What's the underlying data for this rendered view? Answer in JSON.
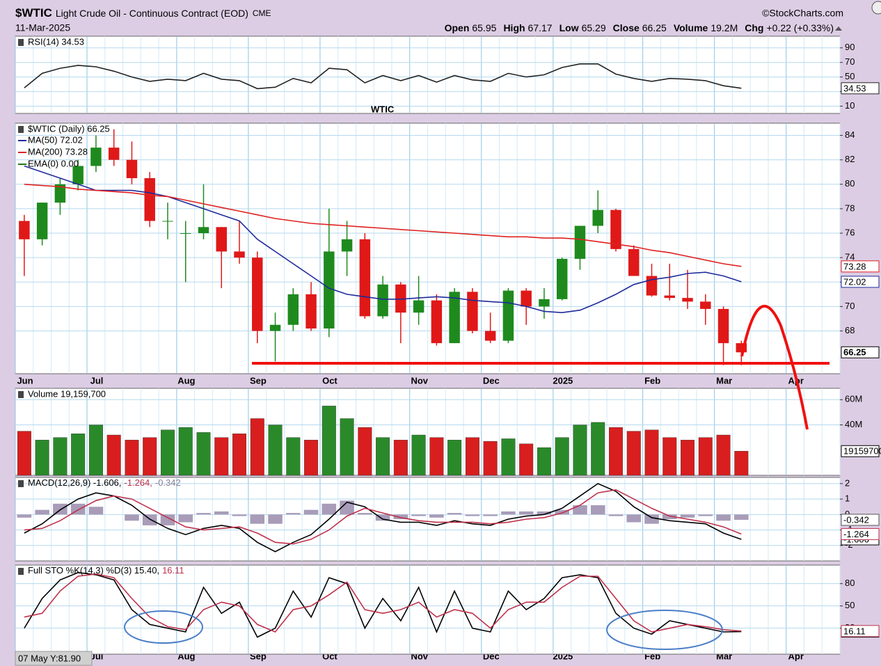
{
  "header": {
    "symbol": "$WTIC",
    "name": "Light Crude Oil - Continuous Contract (EOD)",
    "exchange": "CME",
    "date": "11-Mar-2025",
    "brand": "©StockCharts.com",
    "quote": [
      [
        "Open",
        "65.95"
      ],
      [
        "High",
        "67.17"
      ],
      [
        "Low",
        "65.29"
      ],
      [
        "Close",
        "66.25"
      ],
      [
        "Volume",
        "19.2M"
      ],
      [
        "Chg",
        "+0.22 (+0.33%)"
      ]
    ]
  },
  "cursor_readout": "07 May Y:81.90",
  "chart_data": [
    {
      "type": "line",
      "title": "RSI(14) 34.53",
      "ylim": [
        0,
        106
      ],
      "yticks": [
        90,
        70,
        50,
        30,
        10
      ],
      "series": [
        {
          "color": "#222222",
          "values": [
            35,
            55,
            62,
            66,
            64,
            58,
            50,
            44,
            47,
            45,
            55,
            47,
            45,
            34,
            36,
            48,
            42,
            62,
            60,
            42,
            52,
            45,
            52,
            43,
            52,
            46,
            44,
            55,
            50,
            53,
            63,
            68,
            68,
            54,
            48,
            44,
            48,
            47,
            45,
            38,
            34.53,
            null,
            null,
            null,
            null,
            null
          ]
        }
      ]
    },
    {
      "type": "candlestick",
      "title": "$WTIC (Daily) 66.25",
      "annotation": "WTIC",
      "annotation_color": "#a030f0",
      "up_color": "#1e8a1e",
      "down_color": "#e01818",
      "categories": [
        "Jun",
        null,
        null,
        null,
        "Jul",
        null,
        null,
        null,
        null,
        "Aug",
        null,
        null,
        null,
        "Sep",
        null,
        null,
        null,
        "Oct",
        null,
        null,
        null,
        null,
        "Nov",
        null,
        null,
        null,
        "Dec",
        null,
        null,
        null,
        "2025",
        null,
        null,
        null,
        null,
        "Feb",
        null,
        null,
        null,
        "Mar",
        null,
        null,
        null,
        "Apr",
        null,
        null
      ],
      "open": [
        77,
        75.5,
        78.5,
        80,
        81.5,
        83,
        82,
        80.5,
        77,
        76,
        76,
        76.5,
        74.5,
        74,
        68,
        68.5,
        71,
        68.2,
        74.5,
        75.5,
        69.2,
        71.8,
        69.5,
        70.5,
        67,
        71.2,
        68,
        67.2,
        71.3,
        70,
        70.6,
        73.9,
        76.6,
        77.9,
        74.7,
        72.5,
        70.9,
        70.7,
        70.4,
        69.8,
        67,
        null,
        null,
        null,
        null,
        null
      ],
      "high": [
        77.5,
        78.5,
        80.5,
        82,
        84,
        84.5,
        83.5,
        81,
        78.5,
        77,
        80,
        76.5,
        77,
        74.5,
        69.5,
        71.5,
        72,
        78,
        77,
        76,
        72.5,
        72,
        72.5,
        71,
        71.5,
        71.5,
        69.5,
        71.5,
        71.5,
        71.5,
        74,
        76.5,
        79.5,
        78,
        75,
        73.5,
        73.5,
        73,
        71,
        70,
        67.2,
        null,
        null,
        null,
        null,
        null
      ],
      "low": [
        72.5,
        75,
        77.5,
        79.5,
        81,
        81.5,
        80,
        76.5,
        75.5,
        72,
        75.5,
        71.5,
        73.5,
        67,
        65.5,
        68,
        68,
        67.5,
        72.5,
        69,
        69,
        67,
        68.5,
        66.8,
        67,
        67.8,
        67,
        67,
        68.5,
        69,
        70.5,
        73,
        76,
        74.5,
        72.5,
        70.8,
        70.5,
        69.8,
        68.5,
        65.2,
        65.2,
        null,
        null,
        null,
        null,
        null
      ],
      "close": [
        75.5,
        78.5,
        80,
        81.5,
        83,
        82,
        80.5,
        77,
        77,
        76,
        76.5,
        74.5,
        74,
        68,
        68.5,
        71,
        68.2,
        74.5,
        75.5,
        69.2,
        71.8,
        69.5,
        70.5,
        67,
        71.2,
        68,
        67.2,
        71.3,
        70,
        70.6,
        73.9,
        76.6,
        77.9,
        74.7,
        72.5,
        70.9,
        70.7,
        70.4,
        69.8,
        67,
        66.25,
        null,
        null,
        null,
        null,
        null
      ],
      "ylim": [
        64.5,
        85
      ],
      "yticks": [
        68,
        70,
        72,
        74,
        76,
        78,
        80,
        82,
        84
      ],
      "series": [
        {
          "name": "MA(50) 72.02",
          "color": "#1f2a9a",
          "values": [
            81.5,
            81.0,
            80.5,
            80.0,
            79.5,
            79.5,
            79.5,
            79.3,
            79.0,
            78.5,
            78.0,
            77.5,
            77.0,
            75.5,
            74.5,
            73.5,
            72.5,
            71.5,
            71.0,
            70.8,
            70.6,
            70.6,
            70.7,
            70.8,
            70.7,
            70.5,
            70.4,
            70.3,
            70.0,
            69.6,
            69.5,
            69.7,
            70.3,
            71.0,
            71.8,
            72.2,
            72.4,
            72.7,
            72.8,
            72.5,
            72.02,
            null,
            null,
            null,
            null,
            null
          ]
        },
        {
          "name": "MA(200) 73.28",
          "color": "#e02020",
          "values": [
            80,
            79.9,
            79.8,
            79.6,
            79.5,
            79.4,
            79.3,
            79.1,
            79.0,
            78.7,
            78.4,
            78.1,
            77.8,
            77.5,
            77.2,
            77.0,
            76.8,
            76.7,
            76.6,
            76.5,
            76.4,
            76.3,
            76.2,
            76.1,
            76.0,
            75.9,
            75.8,
            75.7,
            75.7,
            75.6,
            75.6,
            75.5,
            75.3,
            75.1,
            74.9,
            74.6,
            74.4,
            74.1,
            73.8,
            73.5,
            73.28,
            null,
            null,
            null,
            null,
            null
          ]
        }
      ],
      "legend_extra": {
        "name": "EMA(0) 0.00",
        "color": "#1a7a1a"
      }
    },
    {
      "type": "bar",
      "title": "Volume 19,159,700",
      "up_color": "#2a8a2a",
      "down_color": "#d81e1e",
      "ylim": [
        0,
        69000000
      ],
      "yticks": [
        {
          "value": 40000000,
          "label": "40M"
        },
        {
          "value": 60000000,
          "label": "60M"
        }
      ],
      "values": [
        35000000,
        28000000,
        30000000,
        33000000,
        40000000,
        32000000,
        28000000,
        30000000,
        36000000,
        38000000,
        34000000,
        30000000,
        33000000,
        45000000,
        40000000,
        30000000,
        28000000,
        55000000,
        45000000,
        38000000,
        30000000,
        28000000,
        32000000,
        30000000,
        28000000,
        30000000,
        27000000,
        29000000,
        25000000,
        22000000,
        30000000,
        40000000,
        42000000,
        38000000,
        35000000,
        36000000,
        30000000,
        28000000,
        30000000,
        32000000,
        19159700,
        null,
        null,
        null,
        null,
        null
      ]
    },
    {
      "type": "line",
      "title": [
        "MACD(12,26,9) -1.606,",
        "-1.264,",
        "-0.342"
      ],
      "title_colors": [
        "#000000",
        "#c0304a",
        "#8a7f98"
      ],
      "ylim": [
        -3,
        2.4
      ],
      "yticks": [
        2,
        1,
        0,
        -1,
        -2
      ],
      "series": [
        {
          "color": "#000000",
          "values": [
            -1.2,
            -0.6,
            0.3,
            1.0,
            1.4,
            1.2,
            0.6,
            -0.3,
            -0.9,
            -1.3,
            -0.9,
            -0.7,
            -0.9,
            -1.8,
            -2.4,
            -1.8,
            -1.3,
            -0.3,
            0.8,
            0.5,
            -0.3,
            -0.5,
            -0.5,
            -0.7,
            -0.4,
            -0.6,
            -0.7,
            -0.3,
            -0.1,
            0.0,
            0.4,
            1.2,
            2.0,
            1.5,
            0.5,
            -0.2,
            -0.4,
            -0.5,
            -0.6,
            -1.2,
            -1.606,
            null,
            null,
            null,
            null,
            null
          ]
        },
        {
          "color": "#c0304a",
          "values": [
            -1.0,
            -0.9,
            -0.4,
            0.3,
            0.9,
            1.2,
            1.0,
            0.4,
            -0.2,
            -0.8,
            -1.0,
            -0.9,
            -0.8,
            -1.2,
            -1.8,
            -1.9,
            -1.6,
            -1.0,
            -0.1,
            0.4,
            0.1,
            -0.2,
            -0.4,
            -0.5,
            -0.5,
            -0.5,
            -0.6,
            -0.5,
            -0.3,
            -0.2,
            0.1,
            0.6,
            1.4,
            1.6,
            1.0,
            0.4,
            -0.1,
            -0.3,
            -0.5,
            -0.8,
            -1.264,
            null,
            null,
            null,
            null,
            null
          ]
        },
        {
          "kind": "histogram",
          "color": "#a89cb8",
          "values": [
            -0.2,
            0.3,
            0.7,
            0.7,
            0.5,
            0.0,
            -0.4,
            -0.7,
            -0.7,
            -0.5,
            0.1,
            0.2,
            -0.1,
            -0.6,
            -0.6,
            0.1,
            0.3,
            0.7,
            0.9,
            0.1,
            -0.4,
            -0.3,
            -0.1,
            -0.2,
            0.1,
            -0.1,
            -0.1,
            0.2,
            0.2,
            0.2,
            0.3,
            0.6,
            0.6,
            -0.1,
            -0.5,
            -0.6,
            -0.3,
            -0.2,
            -0.1,
            -0.4,
            -0.342,
            null,
            null,
            null,
            null,
            null
          ]
        }
      ]
    },
    {
      "type": "line",
      "title": [
        "Full STO %K(14,3) %D(3) 15.40,",
        "16.11"
      ],
      "title_colors": [
        "#000000",
        "#c0304a"
      ],
      "ylim": [
        -15,
        105
      ],
      "yticks": [
        80,
        50,
        20
      ],
      "series": [
        {
          "color": "#000000",
          "last_label": "15.40",
          "values": [
            20,
            60,
            85,
            95,
            92,
            85,
            45,
            25,
            20,
            15,
            75,
            40,
            55,
            8,
            20,
            70,
            35,
            88,
            80,
            20,
            60,
            30,
            75,
            15,
            70,
            20,
            15,
            70,
            45,
            60,
            88,
            92,
            88,
            40,
            20,
            12,
            30,
            25,
            20,
            15,
            15.4,
            null,
            null,
            null,
            null,
            null
          ]
        },
        {
          "color": "#c0304a",
          "values": [
            35,
            40,
            70,
            90,
            93,
            88,
            60,
            35,
            22,
            18,
            45,
            55,
            50,
            25,
            15,
            45,
            50,
            65,
            82,
            45,
            40,
            45,
            55,
            35,
            45,
            40,
            20,
            45,
            55,
            55,
            75,
            90,
            90,
            60,
            30,
            15,
            20,
            25,
            22,
            18,
            16.11,
            null,
            null,
            null,
            null,
            null
          ]
        }
      ]
    }
  ]
}
